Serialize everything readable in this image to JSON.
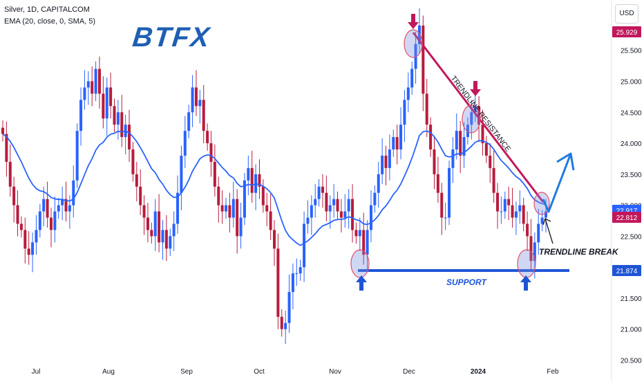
{
  "header": {
    "symbol_line": "Silver, 1D, CAPITALCOM",
    "indicator_line": "EMA (20, close, 0, SMA, 5)"
  },
  "logo_text": "BTFX",
  "currency": "USD",
  "annotations": {
    "trendline_label": "TRENDLINE RESISTANCE",
    "break_label": "TRENDLINE BREAK",
    "support_label": "SUPPORT"
  },
  "colors": {
    "up": "#2962ff",
    "down": "#b71c3c",
    "ema": "#2962ff",
    "resistance": "#c2185b",
    "support": "#1e55d6",
    "last_price_tag": "#1e55d6",
    "high_tag": "#c2185b"
  },
  "chart_data": {
    "type": "candlestick",
    "y_axis": {
      "range": [
        20.45,
        26.2
      ],
      "ticks": [
        "20.500",
        "21.000",
        "21.500",
        "22.000",
        "22.500",
        "23.000",
        "23.500",
        "24.000",
        "24.500",
        "25.000",
        "25.500"
      ]
    },
    "x_axis": {
      "labels": [
        "Jul",
        "Aug",
        "Sep",
        "Oct",
        "Nov",
        "Dec",
        "2024",
        "Feb"
      ]
    },
    "price_tags": [
      {
        "value": "25.929",
        "color": "#c2185b"
      },
      {
        "value": "22.917",
        "color": "#2962ff"
      },
      {
        "value": "22.812",
        "color": "#c2185b"
      },
      {
        "value": "21.874",
        "color": "#1e55d6"
      }
    ],
    "ema_legend": "EMA (20, close, 0, SMA, 5)",
    "closes": [
      24.15,
      23.7,
      23.3,
      23.0,
      22.7,
      22.6,
      22.3,
      22.2,
      22.4,
      22.6,
      22.9,
      23.1,
      22.8,
      22.6,
      22.9,
      23.0,
      23.1,
      22.9,
      23.0,
      23.4,
      24.2,
      24.7,
      24.9,
      25.0,
      24.8,
      25.2,
      24.8,
      24.4,
      24.9,
      24.6,
      24.3,
      24.5,
      24.1,
      24.3,
      23.9,
      23.5,
      23.3,
      23.0,
      22.8,
      22.6,
      22.5,
      22.9,
      22.4,
      22.6,
      22.3,
      22.5,
      22.7,
      23.2,
      23.8,
      24.2,
      24.5,
      24.9,
      24.6,
      24.7,
      24.2,
      24.0,
      23.7,
      23.3,
      23.0,
      22.9,
      23.0,
      22.8,
      23.1,
      22.5,
      22.8,
      23.4,
      23.6,
      23.2,
      23.5,
      23.3,
      23.0,
      22.9,
      22.6,
      22.3,
      21.2,
      21.0,
      21.1,
      21.6,
      21.9,
      21.9,
      22.0,
      22.7,
      22.8,
      23.0,
      23.1,
      23.3,
      23.2,
      22.9,
      23.0,
      23.1,
      22.9,
      22.8,
      22.9,
      23.1,
      22.6,
      22.5,
      22.6,
      22.2,
      22.6,
      23.0,
      23.2,
      23.5,
      23.8,
      23.6,
      23.9,
      24.1,
      23.9,
      24.3,
      24.7,
      24.9,
      25.2,
      25.6,
      25.9,
      24.8,
      24.3,
      23.9,
      23.5,
      23.2,
      22.8,
      22.8,
      23.6,
      23.9,
      24.2,
      23.8,
      24.1,
      24.3,
      24.5,
      24.6,
      24.3,
      24.0,
      23.8,
      23.6,
      23.2,
      22.9,
      22.9,
      23.1,
      23.0,
      22.8,
      22.9,
      23.0,
      22.7,
      22.5,
      22.1,
      22.4,
      22.7,
      22.8,
      22.9
    ]
  }
}
